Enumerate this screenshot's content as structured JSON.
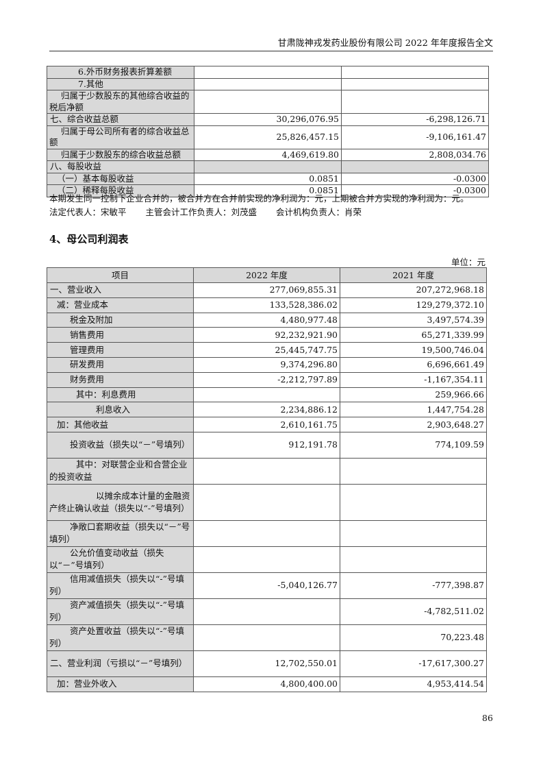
{
  "header": {
    "title": "甘肃陇神戎发药业股份有限公司 2022 年年度报告全文"
  },
  "top_table": {
    "rows": [
      {
        "label": "6.外币财务报表折算差额",
        "v2022": "",
        "v2021": ""
      },
      {
        "label": "7.其他",
        "v2022": "",
        "v2021": ""
      },
      {
        "label": "归属于少数股东的其他综合收益的税后净额",
        "v2022": "",
        "v2021": ""
      },
      {
        "label": "七、综合收益总额",
        "v2022": "30,296,076.95",
        "v2021": "-6,298,126.71"
      },
      {
        "label": "归属于母公司所有者的综合收益总额",
        "v2022": "25,826,457.15",
        "v2021": "-9,106,161.47"
      },
      {
        "label": "归属于少数股东的综合收益总额",
        "v2022": "4,469,619.80",
        "v2021": "2,808,034.76"
      },
      {
        "label": "八、每股收益",
        "v2022": "",
        "v2021": ""
      },
      {
        "label": "（一）基本每股收益",
        "v2022": "0.0851",
        "v2021": "-0.0300"
      },
      {
        "label": "（二）稀释每股收益",
        "v2022": "0.0851",
        "v2021": "-0.0300"
      }
    ]
  },
  "notes": {
    "merger_note": "本期发生同一控制下企业合并的，被合并方在合并前实现的净利润为：元，上期被合并方实现的净利润为：元。",
    "legal_rep": "法定代表人：宋敏平",
    "accounting_head": "主管会计工作负责人：刘茂盛",
    "accounting_org_head": "会计机构负责人：肖荣"
  },
  "section": {
    "title": "4、母公司利润表",
    "unit": "单位：元"
  },
  "main_table": {
    "headers": [
      "项目",
      "2022 年度",
      "2021 年度"
    ],
    "rows": [
      {
        "label": "一、营业收入",
        "v2022": "277,069,855.31",
        "v2021": "207,272,968.18"
      },
      {
        "label": "减：营业成本",
        "v2022": "133,528,386.02",
        "v2021": "129,279,372.10"
      },
      {
        "label": "税金及附加",
        "v2022": "4,480,977.48",
        "v2021": "3,497,574.39"
      },
      {
        "label": "销售费用",
        "v2022": "92,232,921.90",
        "v2021": "65,271,339.99"
      },
      {
        "label": "管理费用",
        "v2022": "25,445,747.75",
        "v2021": "19,500,746.04"
      },
      {
        "label": "研发费用",
        "v2022": "9,374,296.80",
        "v2021": "6,696,661.49"
      },
      {
        "label": "财务费用",
        "v2022": "-2,212,797.89",
        "v2021": "-1,167,354.11"
      },
      {
        "label": "其中：利息费用",
        "v2022": "",
        "v2021": "259,966.66"
      },
      {
        "label": "利息收入",
        "v2022": "2,234,886.12",
        "v2021": "1,447,754.28"
      },
      {
        "label": "加：其他收益",
        "v2022": "2,610,161.75",
        "v2021": "2,903,648.27"
      },
      {
        "label": "投资收益（损失以“－”号填列）",
        "v2022": "912,191.78",
        "v2021": "774,109.59"
      },
      {
        "label": "其中：对联营企业和合营企业的投资收益",
        "v2022": "",
        "v2021": ""
      },
      {
        "label": "以摊余成本计量的金融资产终止确认收益（损失以“-”号填列）",
        "v2022": "",
        "v2021": ""
      },
      {
        "label": "净敞口套期收益（损失以“－”号填列）",
        "v2022": "",
        "v2021": ""
      },
      {
        "label": "公允价值变动收益（损失以“－”号填列）",
        "v2022": "",
        "v2021": ""
      },
      {
        "label": "信用减值损失（损失以“-”号填列）",
        "v2022": "-5,040,126.77",
        "v2021": "-777,398.87"
      },
      {
        "label": "资产减值损失（损失以“-”号填列）",
        "v2022": "",
        "v2021": "-4,782,511.02"
      },
      {
        "label": "资产处置收益（损失以“-”号填列）",
        "v2022": "",
        "v2021": "70,223.48"
      },
      {
        "label": "二、营业利润（亏损以“－”号填列）",
        "v2022": "12,702,550.01",
        "v2021": "-17,617,300.27"
      },
      {
        "label": "加：营业外收入",
        "v2022": "4,800,400.00",
        "v2021": "4,953,414.54"
      }
    ]
  },
  "footer": {
    "page_number": "86"
  }
}
